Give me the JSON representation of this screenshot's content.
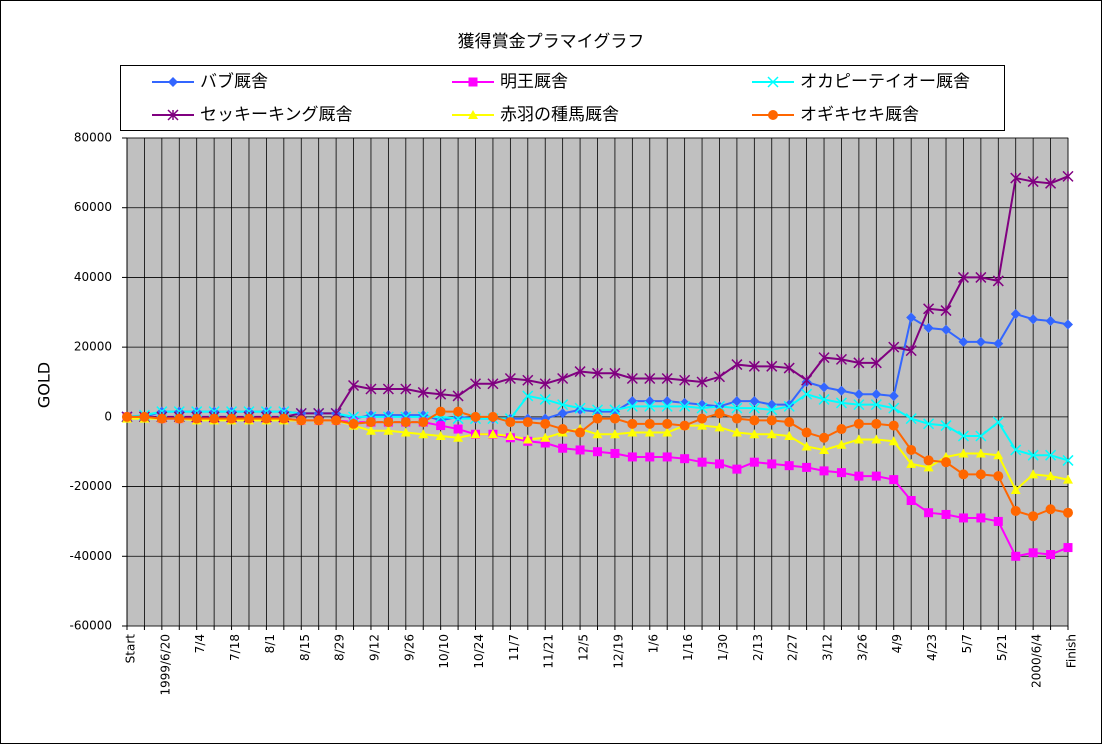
{
  "chart_data": {
    "type": "line",
    "title": "獲得賞金プラマイグラフ",
    "y_label": "GOLD",
    "categories": [
      "Start",
      null,
      "1999/6/20",
      null,
      "7/4",
      null,
      "7/18",
      null,
      "8/1",
      null,
      "8/15",
      null,
      "8/29",
      null,
      "9/12",
      null,
      "9/26",
      null,
      "10/10",
      null,
      "10/24",
      null,
      "11/7",
      null,
      "11/21",
      null,
      "12/5",
      null,
      "12/19",
      null,
      "1/6",
      null,
      "1/16",
      null,
      "1/30",
      null,
      "2/13",
      null,
      "2/27",
      null,
      "3/12",
      null,
      "3/26",
      null,
      "4/9",
      null,
      "4/23",
      null,
      "5/7",
      null,
      "5/21",
      null,
      "2000/6/4",
      null,
      "Finish"
    ],
    "series": [
      {
        "name": "バブ厩舎",
        "color": "#3366ff",
        "marker": "diamond",
        "values": [
          0,
          0,
          1500,
          1500,
          1500,
          1500,
          1500,
          1500,
          1500,
          1500,
          1000,
          1000,
          1000,
          -500,
          500,
          500,
          500,
          500,
          -1000,
          0,
          -500,
          -500,
          -500,
          -500,
          -500,
          1000,
          2000,
          1500,
          1500,
          4500,
          4500,
          4500,
          4000,
          3500,
          3000,
          4500,
          4500,
          3500,
          3500,
          10000,
          8500,
          7500,
          6500,
          6500,
          6000,
          28500,
          25500,
          25000,
          21500,
          21500,
          21000,
          29500,
          28000,
          27500,
          26500
        ]
      },
      {
        "name": "明王厩舎",
        "color": "#ff00ff",
        "marker": "square",
        "values": [
          0,
          0,
          -500,
          -500,
          -500,
          -500,
          -500,
          -500,
          -500,
          -500,
          -1000,
          -1000,
          -1000,
          -1500,
          -1500,
          -1500,
          -1500,
          -1500,
          -2500,
          -3500,
          -5000,
          -5000,
          -6000,
          -7000,
          -7500,
          -9000,
          -9500,
          -10000,
          -10500,
          -11500,
          -11500,
          -11500,
          -12000,
          -13000,
          -13500,
          -15000,
          -13000,
          -13500,
          -14000,
          -14500,
          -15500,
          -16000,
          -17000,
          -17000,
          -18000,
          -24000,
          -27500,
          -28000,
          -29000,
          -29000,
          -30000,
          -40000,
          -39000,
          -39500,
          -37500
        ]
      },
      {
        "name": "オカピーテイオー厩舎",
        "color": "#00ffff",
        "marker": "x",
        "values": [
          0,
          500,
          1500,
          1500,
          1500,
          1500,
          1500,
          1500,
          1500,
          1500,
          1000,
          1000,
          1000,
          0,
          0,
          0,
          0,
          0,
          0,
          -500,
          -500,
          -500,
          -500,
          6000,
          5000,
          3500,
          2500,
          2000,
          2000,
          3000,
          3000,
          3000,
          3000,
          2500,
          3000,
          2500,
          2500,
          2000,
          3000,
          6500,
          5000,
          4000,
          3500,
          3500,
          2500,
          -500,
          -2000,
          -2500,
          -5500,
          -5500,
          -1500,
          -9500,
          -11000,
          -11000,
          -12500
        ]
      },
      {
        "name": "セッキーキング厩舎",
        "color": "#800080",
        "marker": "star",
        "values": [
          0,
          0,
          0,
          0,
          0,
          0,
          0,
          0,
          0,
          0,
          1000,
          1000,
          1000,
          9000,
          8000,
          8000,
          8000,
          7000,
          6500,
          6000,
          9500,
          9500,
          11000,
          10500,
          9500,
          11000,
          13000,
          12500,
          12500,
          11000,
          11000,
          11000,
          10500,
          10000,
          11500,
          15000,
          14500,
          14500,
          14000,
          10500,
          17000,
          16500,
          15500,
          15500,
          20000,
          19000,
          31000,
          30500,
          40000,
          40000,
          39000,
          68500,
          67500,
          67000,
          69000
        ]
      },
      {
        "name": "赤羽の種馬厩舎",
        "color": "#ffff00",
        "marker": "triangle",
        "values": [
          -500,
          -500,
          -500,
          -500,
          -1000,
          -1000,
          -1000,
          -1000,
          -1000,
          -1000,
          -1000,
          -1000,
          -1000,
          -2500,
          -4000,
          -4000,
          -4500,
          -5000,
          -5500,
          -6000,
          -5000,
          -5000,
          -5500,
          -6500,
          -6000,
          -4500,
          -3500,
          -5000,
          -5000,
          -4500,
          -4500,
          -4500,
          -2500,
          -2500,
          -3000,
          -4500,
          -5000,
          -5000,
          -5500,
          -8500,
          -9500,
          -8000,
          -6500,
          -6500,
          -7000,
          -13500,
          -14500,
          -11500,
          -10500,
          -10500,
          -11000,
          -21000,
          -16500,
          -17000,
          -18000
        ]
      },
      {
        "name": "オギキセキ厩舎",
        "color": "#ff6600",
        "marker": "circle",
        "values": [
          0,
          0,
          -500,
          -500,
          -500,
          -500,
          -500,
          -500,
          -500,
          -500,
          -1000,
          -1000,
          -1000,
          -2000,
          -1500,
          -1500,
          -1500,
          -1500,
          1500,
          1500,
          0,
          0,
          -1500,
          -1500,
          -2000,
          -3500,
          -4500,
          -500,
          -500,
          -2000,
          -2000,
          -2000,
          -2500,
          -500,
          1000,
          -500,
          -1000,
          -1000,
          -1500,
          -4500,
          -6000,
          -3500,
          -2000,
          -2000,
          -2500,
          -9500,
          -12500,
          -13000,
          -16500,
          -16500,
          -17000,
          -27000,
          -28500,
          -26500,
          -27500
        ]
      }
    ],
    "ylim": [
      -60000,
      80000
    ],
    "yticks": [
      -60000,
      -40000,
      -20000,
      0,
      20000,
      40000,
      60000,
      80000
    ],
    "grid": true,
    "legend": "top"
  }
}
